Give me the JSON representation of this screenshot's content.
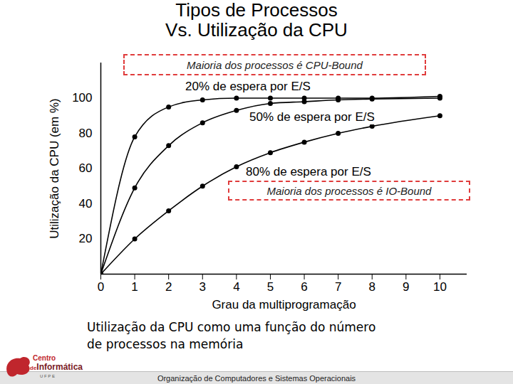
{
  "title_lines": [
    "Tipos de Processos",
    "Vs. Utilização da CPU"
  ],
  "chart_data": {
    "type": "line",
    "x_label": "Grau da multiprogramação",
    "y_label": "Utilização da CPU (em %)",
    "x": [
      0,
      1,
      2,
      3,
      4,
      5,
      6,
      7,
      8,
      10
    ],
    "series": [
      {
        "name": "20% de espera por E/S",
        "color": "#000000",
        "marker": "circle",
        "line_style": "solid",
        "values": [
          0,
          78,
          95,
          99,
          100,
          100,
          100,
          100,
          100,
          101
        ]
      },
      {
        "name": "50% de espera por E/S",
        "color": "#000000",
        "marker": "circle",
        "line_style": "solid",
        "values": [
          0,
          49,
          73,
          86,
          93,
          97,
          98,
          99,
          99.5,
          100
        ]
      },
      {
        "name": "80% de espera por E/S",
        "color": "#000000",
        "marker": "circle",
        "line_style": "solid",
        "values": [
          0,
          20,
          36,
          50,
          61,
          69,
          75,
          80,
          84,
          90
        ]
      }
    ],
    "xlim": [
      0,
      10.8
    ],
    "xticks": [
      0,
      1,
      2,
      3,
      4,
      5,
      6,
      7,
      8,
      9,
      10
    ],
    "ylim": [
      0,
      120
    ],
    "yticks": [
      20,
      40,
      60,
      80,
      100
    ],
    "grid": false,
    "annotations": [
      "Maioria dos processos é CPU-Bound",
      "Maioria dos processos é IO-Bound"
    ]
  },
  "caption_lines": [
    "Utilização da CPU como uma função do número",
    "de processos na memória"
  ],
  "footer": "Organização de Computadores e Sistemas Operacionais",
  "logo": [
    "Centro",
    "de",
    "Informática",
    "U F P E"
  ]
}
